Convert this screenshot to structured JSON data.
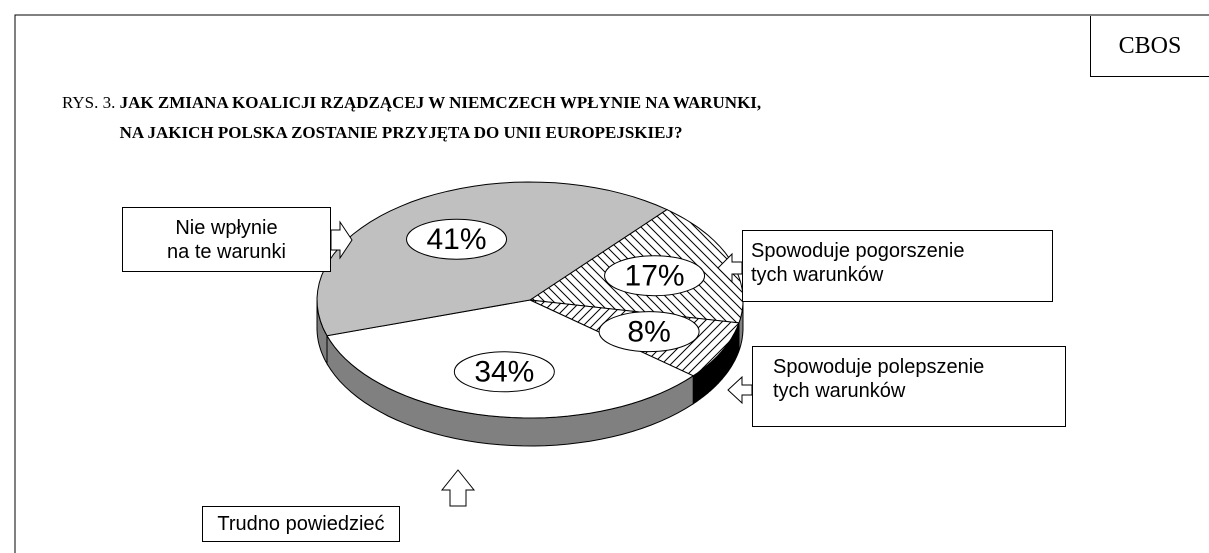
{
  "chart_data": {
    "type": "pie",
    "source": "CBOS",
    "title_prefix": "RYS. 3.",
    "title": "JAK ZMIANA KOALICJI RZĄDZĄCEJ W NIEMCZECH WPŁYNIE NA WARUNKI,\nNA JAKICH POLSKA ZOSTANIE PRZYJĘTA DO UNII EUROPEJSKIEJ?",
    "categories": [
      "Spowoduje pogorszenie\ntych warunków",
      "Spowoduje polepszenie\ntych warunków",
      "Trudno powiedzieć",
      "Nie wpłynie\nna te warunki"
    ],
    "values": [
      17,
      8,
      34,
      41
    ],
    "value_labels": [
      "17%",
      "8%",
      "34%",
      "41%"
    ],
    "colors": [
      "#ffffff",
      "#ffffff",
      "#ffffff",
      "#c0c0c0"
    ],
    "hatch": [
      "backward",
      "forward",
      "none",
      "none"
    ],
    "side_colors": [
      "#808080",
      "#000000",
      "#808080",
      "#808080"
    ]
  }
}
